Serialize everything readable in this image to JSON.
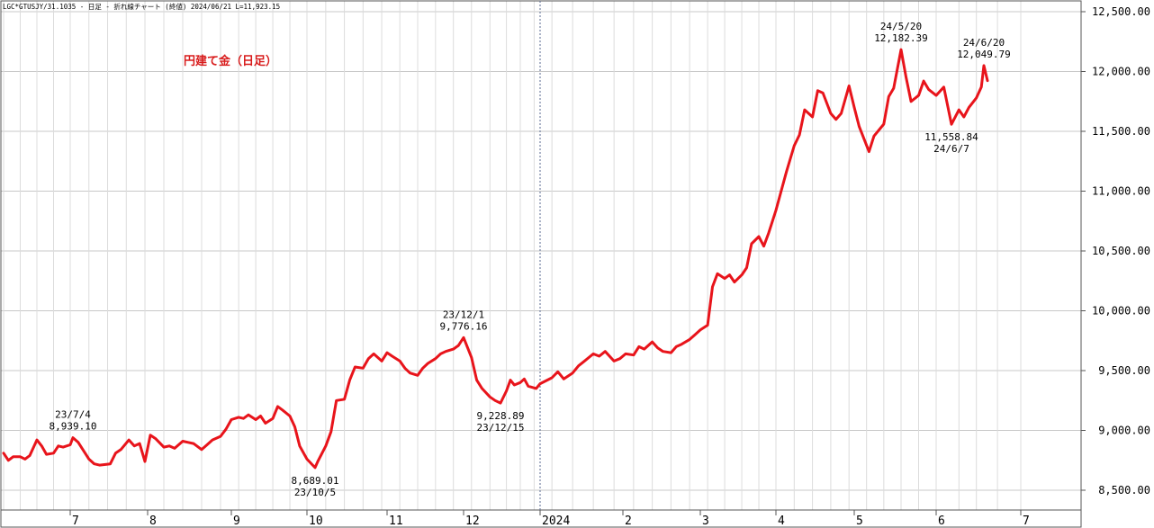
{
  "header": "LGC*GTUSJY/31.1035 - 日足 - 折れ線チャート (終値) 2024/06/21 L=11,923.15",
  "chart_data": {
    "type": "line",
    "title": "円建て金（日足）",
    "xlabel": "",
    "ylabel": "",
    "ylim": [
      8400,
      12620
    ],
    "yticks": [
      8500,
      9000,
      9500,
      10000,
      10500,
      11000,
      11500,
      12000,
      12500
    ],
    "ytick_labels": [
      "8,500.00",
      "9,000.00",
      "9,500.00",
      "10,000.00",
      "10,500.00",
      "11,000.00",
      "11,500.00",
      "12,000.00",
      "12,500.00"
    ],
    "xticks": [
      {
        "label": "7",
        "date": "2023-07-03"
      },
      {
        "label": "8",
        "date": "2023-08-01"
      },
      {
        "label": "9",
        "date": "2023-09-01"
      },
      {
        "label": "10",
        "date": "2023-10-02"
      },
      {
        "label": "11",
        "date": "2023-11-01"
      },
      {
        "label": "12",
        "date": "2023-12-01"
      },
      {
        "label": "2024",
        "date": "2024-01-04"
      },
      {
        "label": "2",
        "date": "2024-02-01"
      },
      {
        "label": "3",
        "date": "2024-03-01"
      },
      {
        "label": "4",
        "date": "2024-04-01"
      },
      {
        "label": "5",
        "date": "2024-05-01"
      },
      {
        "label": "6",
        "date": "2024-06-03"
      },
      {
        "label": "7",
        "date": "2024-07-01"
      }
    ],
    "grid": true,
    "series": [
      {
        "color": "#e8141b",
        "points": [
          [
            "2023-06-05",
            8810
          ],
          [
            "2023-06-07",
            8750
          ],
          [
            "2023-06-09",
            8780
          ],
          [
            "2023-06-12",
            8780
          ],
          [
            "2023-06-14",
            8760
          ],
          [
            "2023-06-16",
            8790
          ],
          [
            "2023-06-19",
            8920
          ],
          [
            "2023-06-21",
            8870
          ],
          [
            "2023-06-23",
            8800
          ],
          [
            "2023-06-26",
            8810
          ],
          [
            "2023-06-28",
            8870
          ],
          [
            "2023-06-30",
            8860
          ],
          [
            "2023-07-03",
            8880
          ],
          [
            "2023-07-04",
            8939.1
          ],
          [
            "2023-07-06",
            8900
          ],
          [
            "2023-07-10",
            8760
          ],
          [
            "2023-07-12",
            8720
          ],
          [
            "2023-07-14",
            8710
          ],
          [
            "2023-07-18",
            8720
          ],
          [
            "2023-07-20",
            8810
          ],
          [
            "2023-07-22",
            8840
          ],
          [
            "2023-07-25",
            8920
          ],
          [
            "2023-07-27",
            8870
          ],
          [
            "2023-07-29",
            8890
          ],
          [
            "2023-07-31",
            8740
          ],
          [
            "2023-08-02",
            8960
          ],
          [
            "2023-08-04",
            8930
          ],
          [
            "2023-08-07",
            8860
          ],
          [
            "2023-08-09",
            8870
          ],
          [
            "2023-08-11",
            8850
          ],
          [
            "2023-08-14",
            8910
          ],
          [
            "2023-08-16",
            8900
          ],
          [
            "2023-08-18",
            8890
          ],
          [
            "2023-08-21",
            8840
          ],
          [
            "2023-08-23",
            8880
          ],
          [
            "2023-08-25",
            8920
          ],
          [
            "2023-08-28",
            8950
          ],
          [
            "2023-08-30",
            9010
          ],
          [
            "2023-09-01",
            9090
          ],
          [
            "2023-09-04",
            9110
          ],
          [
            "2023-09-06",
            9100
          ],
          [
            "2023-09-08",
            9130
          ],
          [
            "2023-09-11",
            9090
          ],
          [
            "2023-09-13",
            9120
          ],
          [
            "2023-09-15",
            9060
          ],
          [
            "2023-09-18",
            9100
          ],
          [
            "2023-09-20",
            9200
          ],
          [
            "2023-09-22",
            9170
          ],
          [
            "2023-09-25",
            9120
          ],
          [
            "2023-09-27",
            9030
          ],
          [
            "2023-09-29",
            8870
          ],
          [
            "2023-10-02",
            8760
          ],
          [
            "2023-10-05",
            8689.01
          ],
          [
            "2023-10-06",
            8740
          ],
          [
            "2023-10-09",
            8870
          ],
          [
            "2023-10-11",
            8990
          ],
          [
            "2023-10-13",
            9250
          ],
          [
            "2023-10-16",
            9260
          ],
          [
            "2023-10-18",
            9420
          ],
          [
            "2023-10-20",
            9530
          ],
          [
            "2023-10-23",
            9520
          ],
          [
            "2023-10-25",
            9600
          ],
          [
            "2023-10-27",
            9640
          ],
          [
            "2023-10-30",
            9580
          ],
          [
            "2023-11-01",
            9650
          ],
          [
            "2023-11-03",
            9620
          ],
          [
            "2023-11-06",
            9580
          ],
          [
            "2023-11-08",
            9520
          ],
          [
            "2023-11-10",
            9480
          ],
          [
            "2023-11-13",
            9460
          ],
          [
            "2023-11-15",
            9520
          ],
          [
            "2023-11-17",
            9560
          ],
          [
            "2023-11-20",
            9600
          ],
          [
            "2023-11-22",
            9640
          ],
          [
            "2023-11-24",
            9660
          ],
          [
            "2023-11-27",
            9680
          ],
          [
            "2023-11-29",
            9710
          ],
          [
            "2023-12-01",
            9776.16
          ],
          [
            "2023-12-04",
            9610
          ],
          [
            "2023-12-06",
            9420
          ],
          [
            "2023-12-08",
            9350
          ],
          [
            "2023-12-11",
            9280
          ],
          [
            "2023-12-13",
            9250
          ],
          [
            "2023-12-15",
            9228.89
          ],
          [
            "2023-12-18",
            9330
          ],
          [
            "2023-12-20",
            9420
          ],
          [
            "2023-12-22",
            9380
          ],
          [
            "2023-12-25",
            9400
          ],
          [
            "2023-12-27",
            9430
          ],
          [
            "2023-12-29",
            9370
          ],
          [
            "2024-01-02",
            9350
          ],
          [
            "2024-01-04",
            9390
          ],
          [
            "2024-01-08",
            9440
          ],
          [
            "2024-01-10",
            9490
          ],
          [
            "2024-01-12",
            9430
          ],
          [
            "2024-01-15",
            9480
          ],
          [
            "2024-01-17",
            9540
          ],
          [
            "2024-01-19",
            9580
          ],
          [
            "2024-01-22",
            9640
          ],
          [
            "2024-01-24",
            9620
          ],
          [
            "2024-01-26",
            9660
          ],
          [
            "2024-01-29",
            9580
          ],
          [
            "2024-01-31",
            9600
          ],
          [
            "2024-02-02",
            9640
          ],
          [
            "2024-02-05",
            9630
          ],
          [
            "2024-02-07",
            9700
          ],
          [
            "2024-02-09",
            9680
          ],
          [
            "2024-02-12",
            9740
          ],
          [
            "2024-02-14",
            9690
          ],
          [
            "2024-02-16",
            9660
          ],
          [
            "2024-02-19",
            9650
          ],
          [
            "2024-02-21",
            9700
          ],
          [
            "2024-02-23",
            9720
          ],
          [
            "2024-02-26",
            9760
          ],
          [
            "2024-02-28",
            9800
          ],
          [
            "2024-03-01",
            9840
          ],
          [
            "2024-03-04",
            9880
          ],
          [
            "2024-03-06",
            10200
          ],
          [
            "2024-03-08",
            10310
          ],
          [
            "2024-03-11",
            10270
          ],
          [
            "2024-03-13",
            10300
          ],
          [
            "2024-03-15",
            10240
          ],
          [
            "2024-03-18",
            10300
          ],
          [
            "2024-03-20",
            10360
          ],
          [
            "2024-03-22",
            10560
          ],
          [
            "2024-03-25",
            10620
          ],
          [
            "2024-03-27",
            10540
          ],
          [
            "2024-03-29",
            10650
          ],
          [
            "2024-04-01",
            10840
          ],
          [
            "2024-04-03",
            11000
          ],
          [
            "2024-04-05",
            11160
          ],
          [
            "2024-04-08",
            11380
          ],
          [
            "2024-04-10",
            11470
          ],
          [
            "2024-04-12",
            11680
          ],
          [
            "2024-04-15",
            11620
          ],
          [
            "2024-04-17",
            11840
          ],
          [
            "2024-04-19",
            11820
          ],
          [
            "2024-04-22",
            11650
          ],
          [
            "2024-04-24",
            11600
          ],
          [
            "2024-04-26",
            11650
          ],
          [
            "2024-04-29",
            11880
          ],
          [
            "2024-05-01",
            11700
          ],
          [
            "2024-05-03",
            11540
          ],
          [
            "2024-05-07",
            11330
          ],
          [
            "2024-05-09",
            11460
          ],
          [
            "2024-05-13",
            11560
          ],
          [
            "2024-05-15",
            11790
          ],
          [
            "2024-05-17",
            11860
          ],
          [
            "2024-05-20",
            12182.39
          ],
          [
            "2024-05-22",
            11950
          ],
          [
            "2024-05-24",
            11750
          ],
          [
            "2024-05-27",
            11800
          ],
          [
            "2024-05-29",
            11920
          ],
          [
            "2024-05-31",
            11850
          ],
          [
            "2024-06-03",
            11800
          ],
          [
            "2024-06-05",
            11870
          ],
          [
            "2024-06-07",
            11558.84
          ],
          [
            "2024-06-10",
            11680
          ],
          [
            "2024-06-12",
            11620
          ],
          [
            "2024-06-14",
            11700
          ],
          [
            "2024-06-17",
            11780
          ],
          [
            "2024-06-19",
            11870
          ],
          [
            "2024-06-20",
            12049.79
          ],
          [
            "2024-06-21",
            11923.15
          ]
        ]
      }
    ],
    "annotations": [
      {
        "date_label": "23/7/4",
        "value_label": "8,939.10",
        "date": "2023-07-04",
        "value": 8939.1,
        "position": "above"
      },
      {
        "date_label": "23/10/5",
        "value_label": "8,689.01",
        "date": "2023-10-05",
        "value": 8689.01,
        "position": "below"
      },
      {
        "date_label": "23/12/1",
        "value_label": "9,776.16",
        "date": "2023-12-01",
        "value": 9776.16,
        "position": "above"
      },
      {
        "date_label": "23/12/15",
        "value_label": "9,228.89",
        "date": "2023-12-15",
        "value": 9228.89,
        "position": "below"
      },
      {
        "date_label": "24/5/20",
        "value_label": "12,182.39",
        "date": "2024-05-20",
        "value": 12182.39,
        "position": "above"
      },
      {
        "date_label": "24/6/7",
        "value_label": "11,558.84",
        "date": "2024-06-07",
        "value": 11558.84,
        "position": "below"
      },
      {
        "date_label": "24/6/20",
        "value_label": "12,049.79",
        "date": "2024-06-20",
        "value": 12049.79,
        "position": "above"
      }
    ],
    "year_separator": "2024-01-04"
  }
}
